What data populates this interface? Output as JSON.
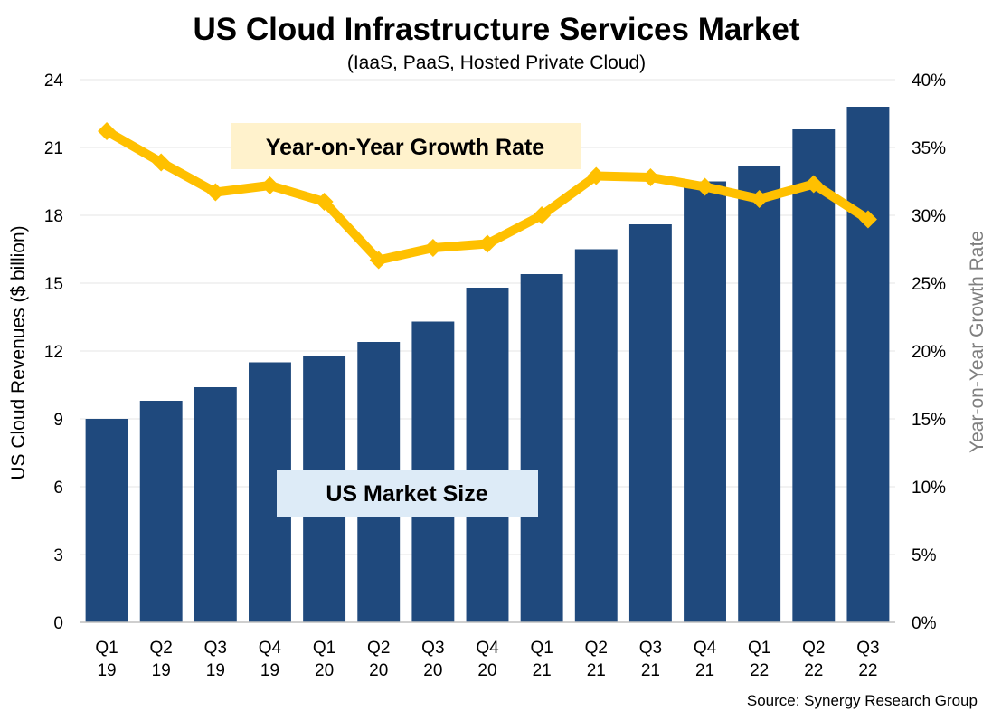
{
  "chart_data": {
    "type": "bar",
    "title": "US Cloud Infrastructure Services Market",
    "subtitle": "(IaaS, PaaS, Hosted Private Cloud)",
    "categories": [
      [
        "Q1",
        "19"
      ],
      [
        "Q2",
        "19"
      ],
      [
        "Q3",
        "19"
      ],
      [
        "Q4",
        "19"
      ],
      [
        "Q1",
        "20"
      ],
      [
        "Q2",
        "20"
      ],
      [
        "Q3",
        "20"
      ],
      [
        "Q4",
        "20"
      ],
      [
        "Q1",
        "21"
      ],
      [
        "Q2",
        "21"
      ],
      [
        "Q3",
        "21"
      ],
      [
        "Q4",
        "21"
      ],
      [
        "Q1",
        "22"
      ],
      [
        "Q2",
        "22"
      ],
      [
        "Q3",
        "22"
      ]
    ],
    "series": [
      {
        "name": "US Market Size",
        "type": "bar",
        "axis": "left",
        "color": "#1f497d",
        "values": [
          9.0,
          9.8,
          10.4,
          11.5,
          11.8,
          12.4,
          13.3,
          14.8,
          15.4,
          16.5,
          17.6,
          19.5,
          20.2,
          21.8,
          22.8
        ]
      },
      {
        "name": "Year-on-Year Growth Rate",
        "type": "line",
        "axis": "right",
        "color": "#ffc000",
        "unit": "%",
        "values": [
          36.2,
          33.9,
          31.7,
          32.2,
          31.0,
          26.7,
          27.6,
          27.9,
          30.0,
          32.9,
          32.8,
          32.1,
          31.2,
          32.3,
          29.7
        ]
      }
    ],
    "ylabel": "US Cloud Revenues ($ billion)",
    "ylabel_right": "Year-on-Year Growth Rate",
    "ylim": [
      0,
      24
    ],
    "yticks": [
      "0",
      "3",
      "6",
      "9",
      "12",
      "15",
      "18",
      "21",
      "24"
    ],
    "ylim_right": [
      0,
      40
    ],
    "yticks_right": [
      "0%",
      "5%",
      "10%",
      "15%",
      "20%",
      "25%",
      "30%",
      "35%",
      "40%"
    ],
    "grid": true,
    "annotations": {
      "growth_label": "Year-on-Year Growth Rate",
      "market_label": "US Market Size"
    },
    "source": "Source: Synergy Research Group"
  },
  "colors": {
    "bar": "#1f497d",
    "line": "#ffc000",
    "growth_label_bg": "#fff2cc",
    "market_label_bg": "#ddebf7",
    "grid": "#e6e6e6"
  }
}
